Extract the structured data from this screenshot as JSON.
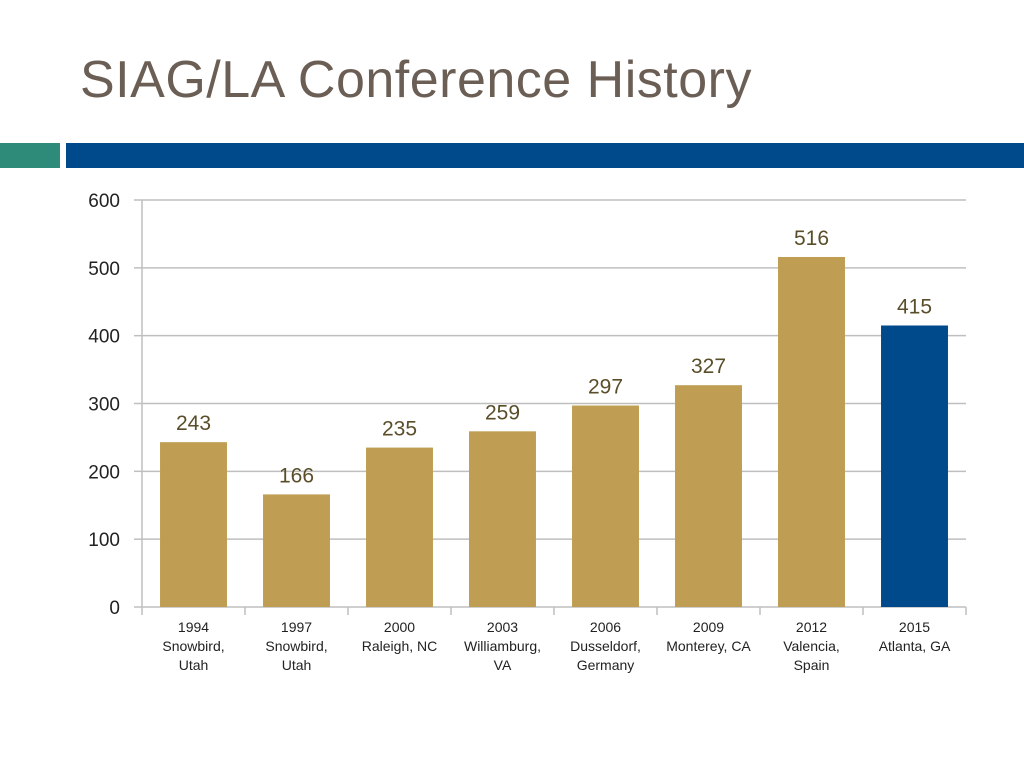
{
  "slide": {
    "title": "SIAG/LA Conference History"
  },
  "colors": {
    "title": "#6b5e55",
    "band_teal": "#2e8b7a",
    "band_blue": "#004a8c",
    "bar_gold": "#bf9e53",
    "bar_highlight": "#004a8c",
    "grid": "#bfbfbf"
  },
  "chart_data": {
    "type": "bar",
    "title": "",
    "xlabel": "",
    "ylabel": "",
    "ylim": [
      0,
      600
    ],
    "yticks": [
      0,
      100,
      200,
      300,
      400,
      500,
      600
    ],
    "grid": true,
    "legend": "none",
    "categories": [
      [
        "1994",
        "Snowbird,",
        "Utah"
      ],
      [
        "1997",
        "Snowbird,",
        "Utah"
      ],
      [
        "2000",
        "Raleigh, NC"
      ],
      [
        "2003",
        "Williamburg,",
        "VA"
      ],
      [
        "2006",
        "Dusseldorf,",
        "Germany"
      ],
      [
        "2009",
        "Monterey, CA"
      ],
      [
        "2012",
        "Valencia,",
        "Spain"
      ],
      [
        "2015",
        "Atlanta, GA"
      ]
    ],
    "values": [
      243,
      166,
      235,
      259,
      297,
      327,
      516,
      415
    ],
    "data_labels": [
      "243",
      "166",
      "235",
      "259",
      "297",
      "327",
      "516",
      "415"
    ],
    "highlight_index": 7
  }
}
